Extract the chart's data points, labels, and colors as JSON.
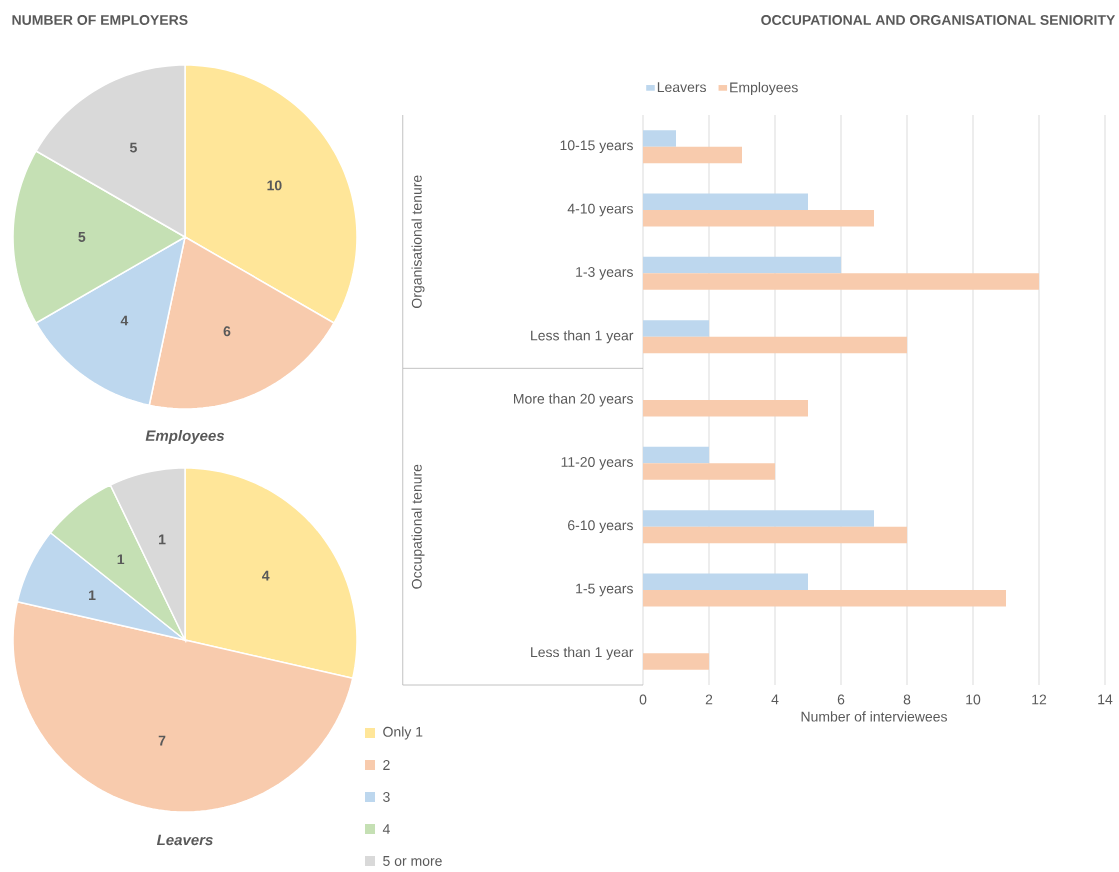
{
  "chart_data": [
    {
      "type": "pie",
      "title": "NUMBER OF EMPLOYERS",
      "categories": [
        "Only 1",
        "2",
        "3",
        "4",
        "5 or more"
      ],
      "colors": [
        "#ffe699",
        "#f8cbad",
        "#bdd7ee",
        "#c5e0b4",
        "#d9d9d9"
      ],
      "series": [
        {
          "name": "Employees",
          "values": [
            10,
            6,
            4,
            5,
            5
          ]
        },
        {
          "name": "Leavers",
          "values": [
            4,
            7,
            1,
            1,
            1
          ]
        }
      ],
      "data_labels": true,
      "legend": "bottom right"
    },
    {
      "type": "bar",
      "orientation": "horizontal",
      "title": "OCCUPATIONAL AND ORGANISATIONAL SENIORITY",
      "xlabel": "Number of interviewees",
      "categories": [
        "10-15 years",
        "4-10 years",
        "1-3 years",
        "Less than 1 year",
        "More than 20 years",
        "11-20 years",
        "6-10 years",
        "1-5 years",
        "Less than 1 year"
      ],
      "series": [
        {
          "name": "Leavers",
          "color": "#bdd7ee",
          "values": [
            1,
            5,
            6,
            2,
            0,
            2,
            7,
            5,
            0
          ]
        },
        {
          "name": "Employees",
          "color": "#f8cbad",
          "values": [
            3,
            7,
            12,
            8,
            5,
            4,
            8,
            11,
            2
          ]
        }
      ],
      "annotations": [
        "Organisational tenure",
        "Occupational tenure"
      ],
      "xlim": [
        0,
        14
      ],
      "xticks": [
        0,
        2,
        4,
        6,
        8,
        10,
        12,
        14
      ],
      "grid": "x",
      "legend": "top"
    }
  ]
}
